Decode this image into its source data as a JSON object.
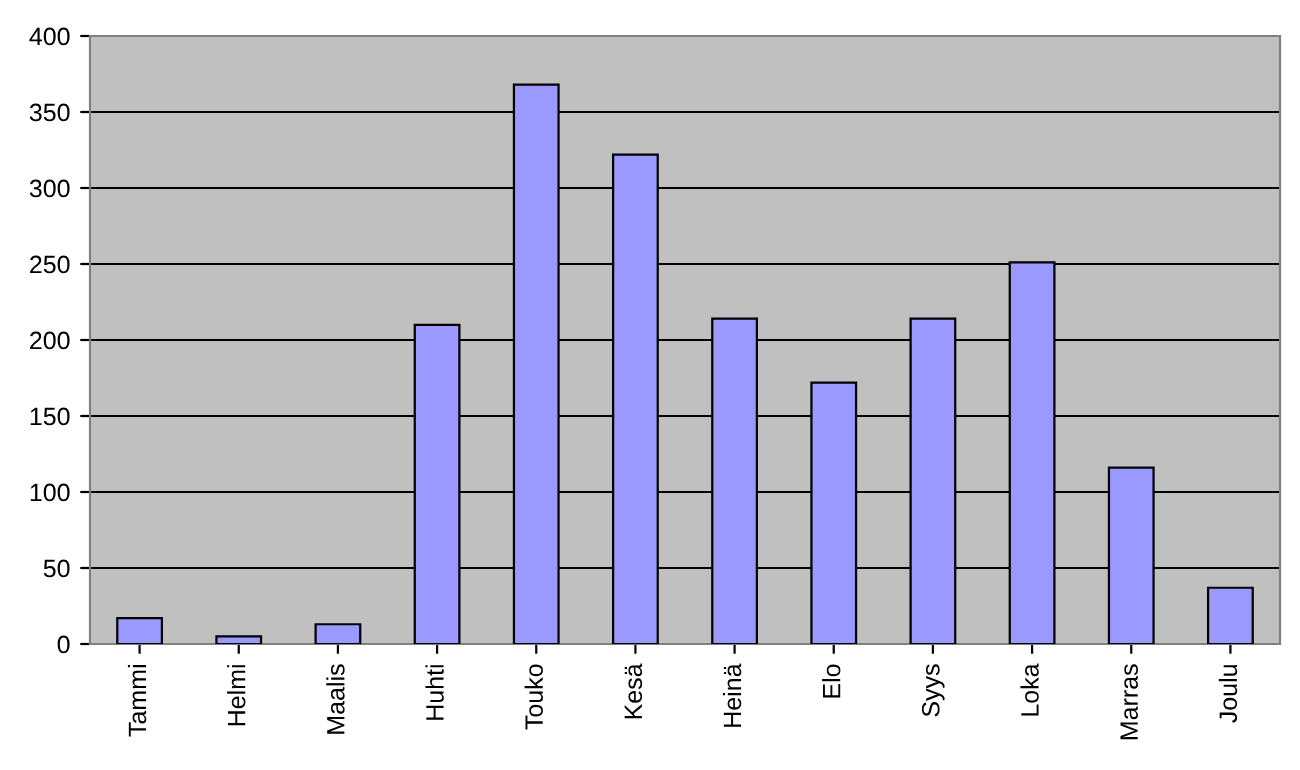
{
  "chart_data": {
    "type": "bar",
    "categories": [
      "Tammi",
      "Helmi",
      "Maalis",
      "Huhti",
      "Touko",
      "Kesä",
      "Heinä",
      "Elo",
      "Syys",
      "Loka",
      "Marras",
      "Joulu"
    ],
    "values": [
      17,
      5,
      13,
      210,
      368,
      322,
      214,
      172,
      214,
      251,
      116,
      37
    ],
    "color": "#9999ff",
    "ylim": [
      0,
      400
    ],
    "yticks": [
      0,
      50,
      100,
      150,
      200,
      250,
      300,
      350,
      400
    ],
    "grid": "y",
    "legend": false
  }
}
